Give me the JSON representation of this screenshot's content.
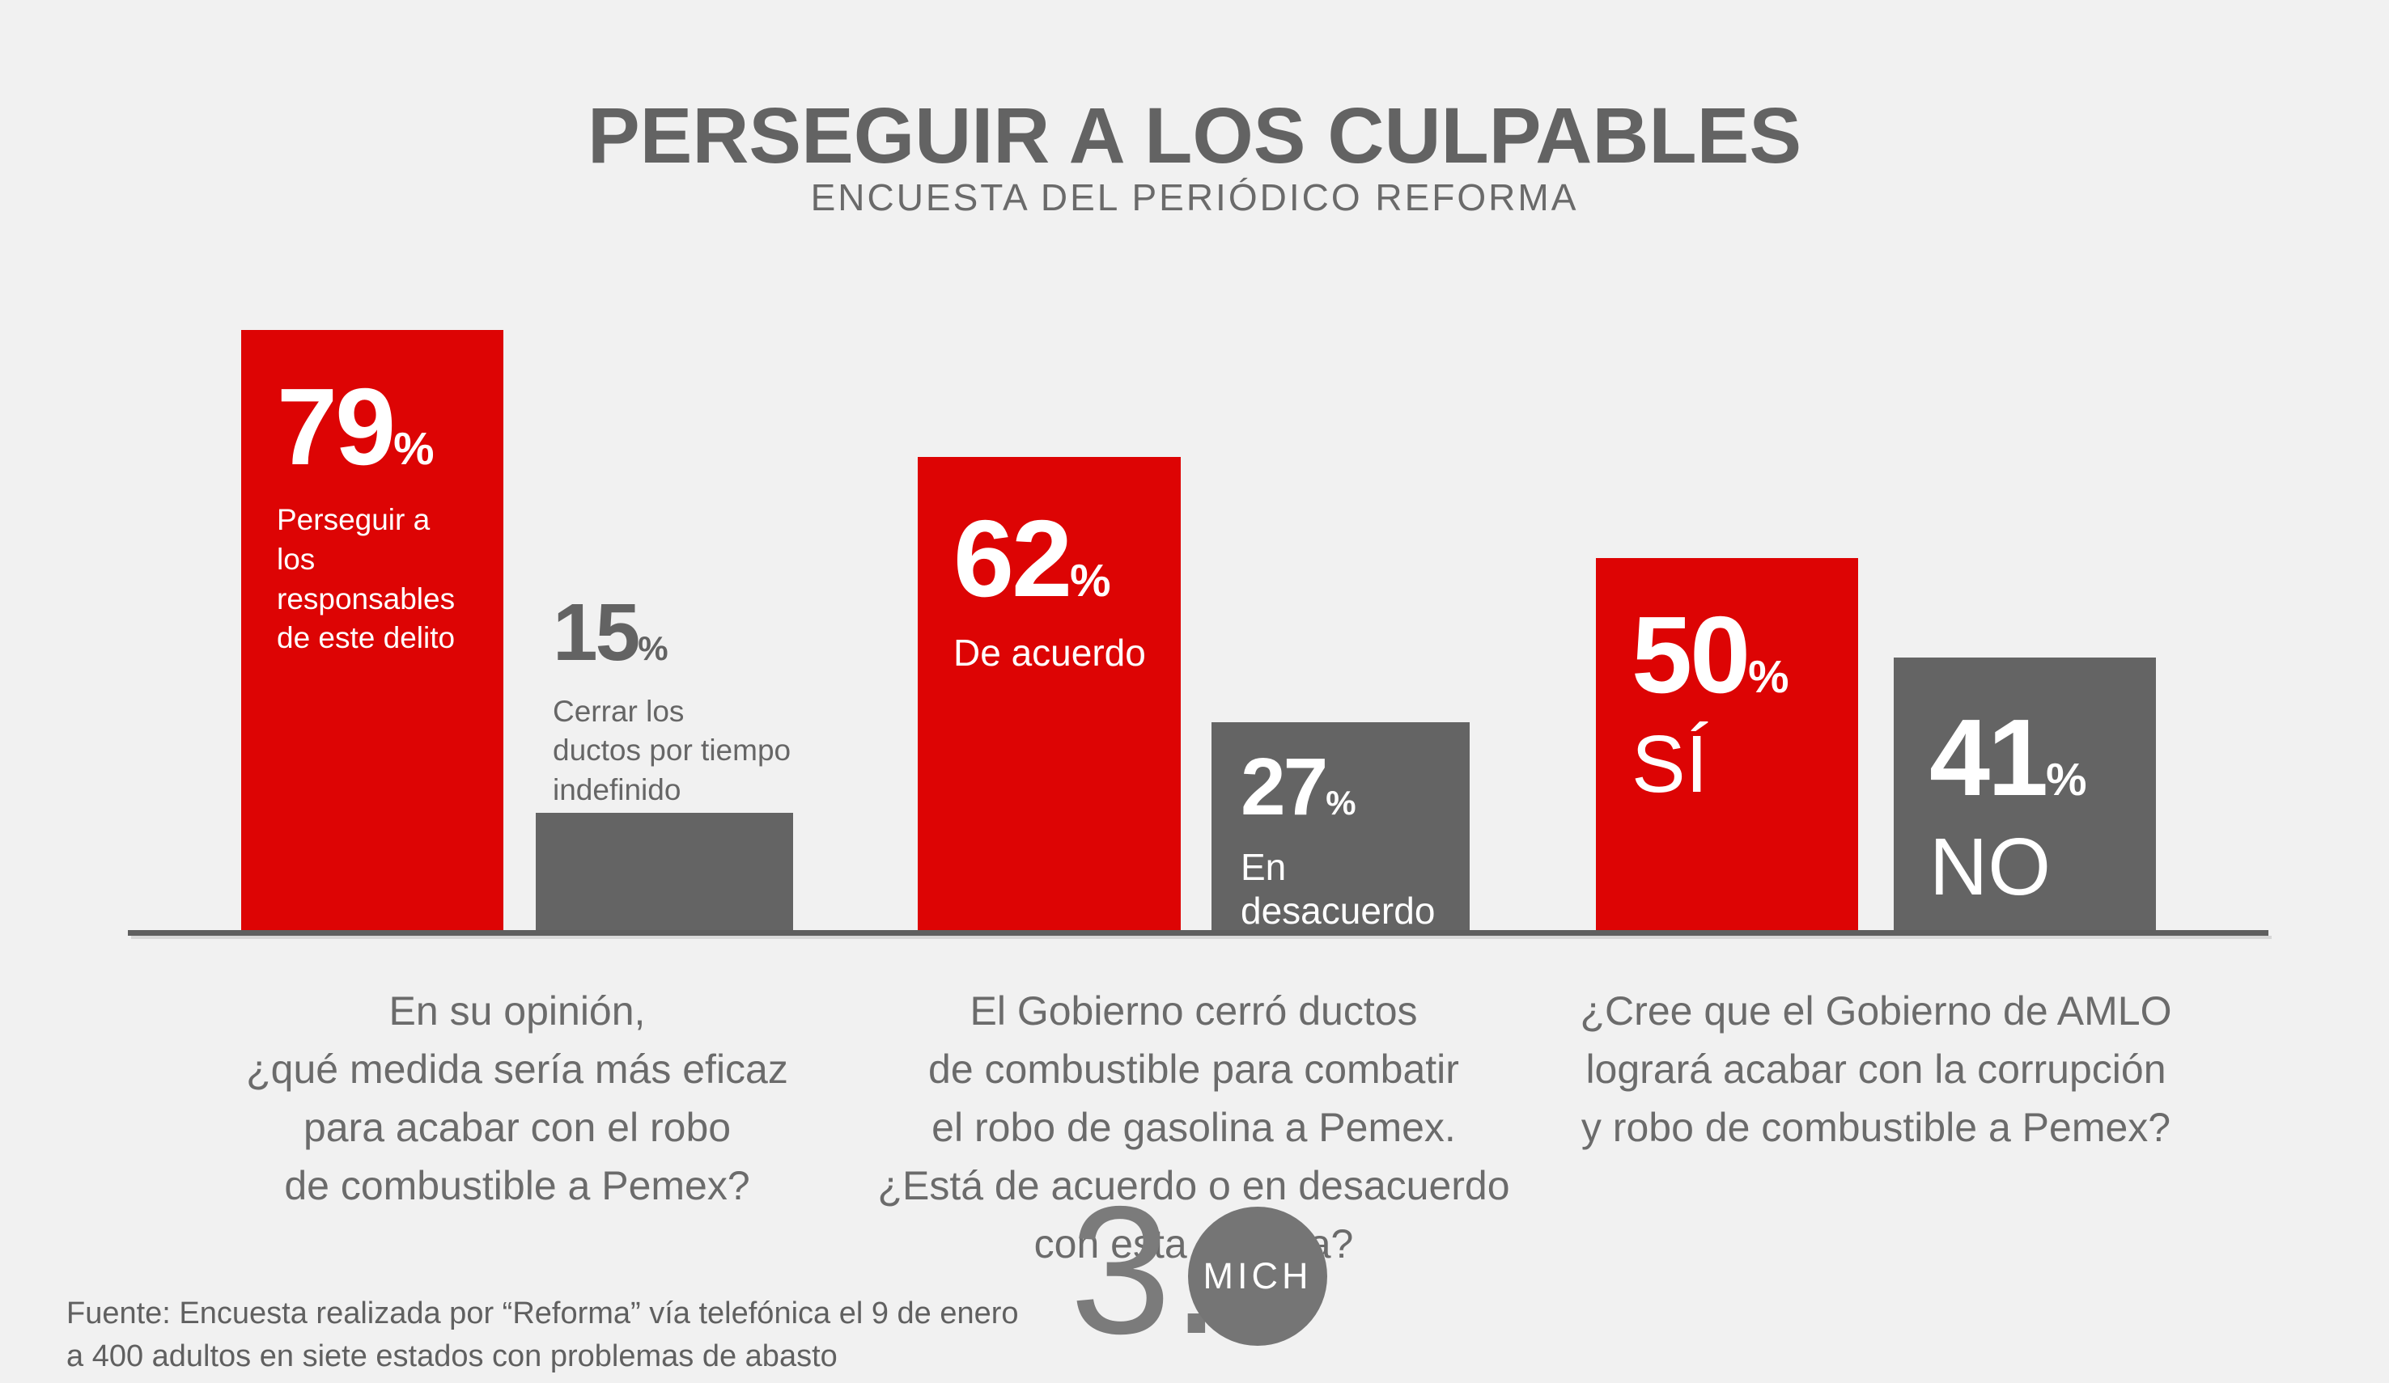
{
  "title": "PERSEGUIR A LOS CULPABLES",
  "subtitle": "ENCUESTA DEL PERIÓDICO REFORMA",
  "chart_data": {
    "type": "bar",
    "unit": "%",
    "value_axis_max": 100,
    "baseline_axis": true,
    "legend": "none",
    "series_colors": {
      "primary_red": "#dd0404",
      "secondary_gray": "#646464"
    },
    "groups": [
      {
        "question_lines": [
          "En su opinión,",
          "¿qué medida sería más eficaz",
          "para acabar con el robo",
          "de combustible a Pemex?"
        ],
        "bars": [
          {
            "value": 79,
            "color": "#dd0404",
            "label_placement": "inside",
            "label_lines": [
              "Perseguir a",
              "los responsables",
              "de este delito"
            ]
          },
          {
            "value": 15,
            "color": "#646464",
            "label_placement": "above",
            "label_lines": [
              "Cerrar los",
              "ductos por tiempo",
              "indefinido"
            ]
          }
        ]
      },
      {
        "question_lines": [
          "El Gobierno cerró ductos",
          "de combustible para combatir",
          "el robo de gasolina a Pemex.",
          "¿Está de acuerdo o en desacuerdo",
          "con esta medida?"
        ],
        "bars": [
          {
            "value": 62,
            "color": "#dd0404",
            "label_placement": "inside",
            "label_lines": [
              "De acuerdo"
            ]
          },
          {
            "value": 27,
            "color": "#646464",
            "label_placement": "inside",
            "label_lines": [
              "En desacuerdo"
            ]
          }
        ]
      },
      {
        "question_lines": [
          "¿Cree que el Gobierno de AMLO",
          "logrará acabar con la corrupción",
          "y robo de combustible a Pemex?"
        ],
        "bars": [
          {
            "value": 50,
            "color": "#dd0404",
            "label_placement": "inside",
            "label_lines": [
              "SÍ"
            ]
          },
          {
            "value": 41,
            "color": "#646464",
            "label_placement": "inside",
            "label_lines": [
              "NO"
            ]
          }
        ]
      }
    ]
  },
  "footer": {
    "source_lines": [
      "Fuente: Encuesta realizada por “Reforma” vía telefónica el 9 de enero",
      "a 400 adultos en siete estados con problemas de abasto"
    ]
  },
  "logo": {
    "number": "3.",
    "badge": "MICH"
  },
  "colors": {
    "background": "#f1f1f1",
    "bar_red": "#dd0404",
    "bar_gray": "#646464",
    "title_gray": "#636363",
    "text_gray": "#6b6b6b",
    "axis_gray": "#5f5f5f",
    "logo_gray": "#7b7b7b",
    "label_white": "#ffffff"
  }
}
